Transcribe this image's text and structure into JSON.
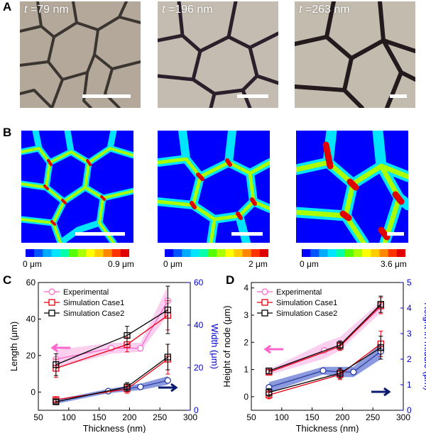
{
  "panels": {
    "A": {
      "letter": "A",
      "images": [
        {
          "t_symbol": "t",
          "t_value": " =79 nm"
        },
        {
          "t_symbol": "t",
          "t_value": " =196 nm"
        },
        {
          "t_symbol": "t",
          "t_value": " =263 nm"
        }
      ]
    },
    "B": {
      "letter": "B",
      "colorbars": [
        {
          "min": "0 μm",
          "max": "0.9 μm"
        },
        {
          "min": "0 μm",
          "max": "2 μm"
        },
        {
          "min": "0 μm",
          "max": "3.6 μm"
        }
      ]
    },
    "C": {
      "letter": "C"
    },
    "D": {
      "letter": "D"
    }
  },
  "colors": {
    "experimental": "#ff66cc",
    "case1": "#e8000f",
    "case2": "#000000",
    "right_axis": "#0000c8",
    "map_colors": [
      "#0000ff",
      "#0055ff",
      "#00aaff",
      "#00e5ff",
      "#00ffaa",
      "#55ff00",
      "#aaff00",
      "#ffff00",
      "#ffcc00",
      "#ff8800",
      "#ff3300",
      "#e00000"
    ]
  },
  "chart_data": [
    {
      "type": "line",
      "panel": "C",
      "xlabel": "Thickness (nm)",
      "ylabel": "Length (μm)",
      "y2label": "Width (μm)",
      "xlim": [
        50,
        300
      ],
      "ylim": [
        -10,
        60
      ],
      "y2lim": [
        0,
        60
      ],
      "xticks": [
        "50",
        "100",
        "150",
        "200",
        "250",
        "300"
      ],
      "yticks": [
        "0",
        "20",
        "40",
        "60"
      ],
      "y2ticks": [
        "0",
        "20",
        "40",
        "60"
      ],
      "legend": [
        "Experimental",
        "Simulation Case1",
        "Simulation Case2"
      ],
      "series": [
        {
          "name": "Experimental",
          "axis": "left",
          "x": [
            79,
            170,
            218,
            263
          ],
          "y": [
            18,
            24,
            24,
            50
          ],
          "band_lo": [
            13,
            21,
            22,
            42
          ],
          "band_hi": [
            23,
            27,
            27,
            58
          ]
        },
        {
          "name": "Simulation Case1",
          "axis": "left",
          "x": [
            79,
            196,
            263
          ],
          "y": [
            13,
            26,
            42
          ],
          "err": [
            5,
            4,
            8
          ]
        },
        {
          "name": "Simulation Case2",
          "axis": "left",
          "x": [
            79,
            196,
            263
          ],
          "y": [
            15,
            31,
            45
          ],
          "err": [
            6,
            5,
            13
          ]
        },
        {
          "name": "Experimental width",
          "axis": "right",
          "x": [
            79,
            165,
            218,
            263
          ],
          "y": [
            4,
            9,
            11,
            14
          ],
          "band_lo": [
            3,
            8,
            9.5,
            12
          ],
          "band_hi": [
            5,
            10,
            12.5,
            16
          ]
        },
        {
          "name": "Simulation Case1 width",
          "axis": "right",
          "x": [
            79,
            196,
            263
          ],
          "y": [
            5,
            10,
            24
          ],
          "err": [
            1,
            2,
            7
          ]
        },
        {
          "name": "Simulation Case2 width",
          "axis": "right",
          "x": [
            79,
            196,
            263
          ],
          "y": [
            4,
            11,
            25
          ],
          "err": [
            1,
            2,
            6
          ]
        }
      ]
    },
    {
      "type": "line",
      "panel": "D",
      "xlabel": "Thickness (nm)",
      "ylabel": "Height of node (μm)",
      "y2label": "Height in middle (μm)",
      "xlim": [
        50,
        300
      ],
      "ylim": [
        -0.5,
        4.2
      ],
      "y2lim": [
        0,
        5
      ],
      "xticks": [
        "50",
        "100",
        "150",
        "200",
        "250",
        "300"
      ],
      "yticks": [
        "0",
        "1",
        "2",
        "3",
        "4"
      ],
      "y2ticks": [
        "0",
        "1",
        "2",
        "3",
        "4",
        "5"
      ],
      "legend": [
        "Experimental",
        "Simulation Case1",
        "Simulation Case2"
      ],
      "series": [
        {
          "name": "Experimental",
          "axis": "left",
          "x": [
            79,
            170,
            196,
            263
          ],
          "y": [
            0.9,
            1.7,
            1.9,
            3.3
          ],
          "band_lo": [
            0.8,
            1.4,
            1.7,
            3.1
          ],
          "band_hi": [
            1.0,
            2.0,
            2.2,
            3.5
          ]
        },
        {
          "name": "Simulation Case1",
          "axis": "left",
          "x": [
            79,
            196,
            263
          ],
          "y": [
            0.9,
            1.85,
            3.35
          ],
          "err": [
            0.1,
            0.15,
            0.3
          ]
        },
        {
          "name": "Simulation Case2",
          "axis": "left",
          "x": [
            79,
            196,
            263
          ],
          "y": [
            0.95,
            1.9,
            3.4
          ],
          "err": [
            0.1,
            0.15,
            0.3
          ]
        },
        {
          "name": "Experimental middle",
          "axis": "right",
          "x": [
            79,
            168,
            196,
            218,
            263
          ],
          "y": [
            0.9,
            1.55,
            1.5,
            1.5,
            2.3
          ],
          "band_lo": [
            0.7,
            1.4,
            1.3,
            1.3,
            2.0
          ],
          "band_hi": [
            1.1,
            1.7,
            1.7,
            1.7,
            2.6
          ]
        },
        {
          "name": "Simulation Case1 middle",
          "axis": "right",
          "x": [
            79,
            196,
            263
          ],
          "y": [
            0.6,
            1.4,
            2.6
          ],
          "err": [
            0.15,
            0.2,
            0.5
          ]
        },
        {
          "name": "Simulation Case2 middle",
          "axis": "right",
          "x": [
            79,
            196,
            263
          ],
          "y": [
            0.7,
            1.45,
            2.45
          ],
          "err": [
            0.15,
            0.2,
            0.45
          ]
        }
      ]
    }
  ]
}
